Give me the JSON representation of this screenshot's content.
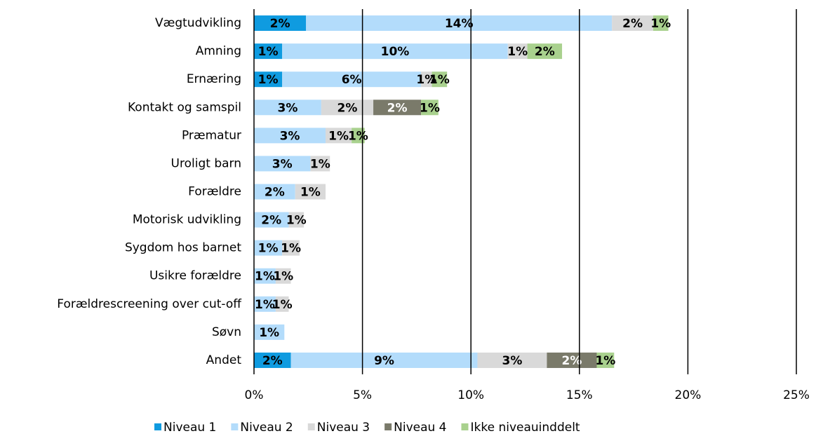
{
  "chart_data": {
    "type": "stacked-bar-horizontal",
    "categories": [
      "Vægtudvikling",
      "Amning",
      "Ernæring",
      "Kontakt og samspil",
      "Præmatur",
      "Uroligt barn",
      "Forældre",
      "Motorisk udvikling",
      "Sygdom hos barnet",
      "Usikre forældre",
      "Forældrescreening over cut-off",
      "Søvn",
      "Andet"
    ],
    "series": [
      {
        "name": "Niveau 1",
        "color": "#0f9be0",
        "label_color": "#000000",
        "values": [
          2.4,
          1.3,
          1.3,
          null,
          null,
          null,
          null,
          null,
          null,
          null,
          null,
          null,
          1.7
        ],
        "value_labels": [
          "2%",
          "1%",
          "1%",
          null,
          null,
          null,
          null,
          null,
          null,
          null,
          null,
          null,
          "2%"
        ]
      },
      {
        "name": "Niveau 2",
        "color": "#b3dcfb",
        "label_color": "#000000",
        "values": [
          14.1,
          10.4,
          6.4,
          3.1,
          3.3,
          2.6,
          1.9,
          1.6,
          1.3,
          1.0,
          1.0,
          1.4,
          8.6
        ],
        "value_labels": [
          "14%",
          "10%",
          "6%",
          "3%",
          "3%",
          "3%",
          "2%",
          "2%",
          "1%",
          "1%",
          "1%",
          "1%",
          "9%"
        ]
      },
      {
        "name": "Niveau 3",
        "color": "#d9d9d9",
        "label_color": "#000000",
        "values": [
          1.9,
          0.9,
          0.5,
          2.4,
          1.2,
          0.9,
          1.4,
          0.7,
          0.8,
          0.7,
          0.6,
          null,
          3.2
        ],
        "value_labels": [
          "2%",
          "1%",
          "1%",
          "2%",
          "1%",
          "1%",
          "1%",
          "1%",
          "1%",
          "1%",
          "1%",
          null,
          "3%"
        ]
      },
      {
        "name": "Niveau 4",
        "color": "#7a7a6a",
        "label_color": "#ffffff",
        "values": [
          null,
          null,
          null,
          2.2,
          null,
          null,
          null,
          null,
          null,
          null,
          null,
          null,
          2.3
        ],
        "value_labels": [
          null,
          null,
          null,
          "2%",
          null,
          null,
          null,
          null,
          null,
          null,
          null,
          null,
          "2%"
        ]
      },
      {
        "name": "Ikke niveauinddelt",
        "color": "#a9d18e",
        "label_color": "#000000",
        "values": [
          0.7,
          1.6,
          0.7,
          0.8,
          0.6,
          null,
          null,
          null,
          null,
          null,
          null,
          null,
          0.8
        ],
        "value_labels": [
          "1%",
          "2%",
          "1%",
          "1%",
          "1%",
          null,
          null,
          null,
          null,
          null,
          null,
          null,
          "1%"
        ]
      }
    ],
    "xlim": [
      0,
      25
    ],
    "xticks": [
      {
        "value": 0,
        "label": "0%"
      },
      {
        "value": 5,
        "label": "5%"
      },
      {
        "value": 10,
        "label": "10%"
      },
      {
        "value": 15,
        "label": "15%"
      },
      {
        "value": 20,
        "label": "20%"
      },
      {
        "value": 25,
        "label": "25%"
      }
    ],
    "grid": true,
    "legend": "bottom"
  }
}
